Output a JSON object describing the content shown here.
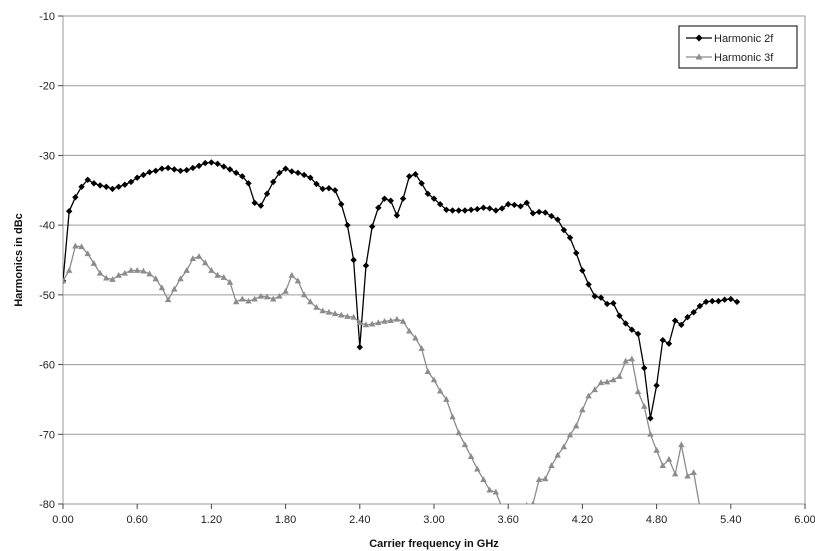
{
  "chart_data": {
    "type": "line",
    "title": "",
    "xlabel": "Carrier frequency in GHz",
    "ylabel": "Harmonics in dBc",
    "xlim": [
      0,
      6
    ],
    "ylim": [
      -80,
      -10
    ],
    "x_ticks": [
      0,
      0.6,
      1.2,
      1.8,
      2.4,
      3.0,
      3.6,
      4.2,
      4.8,
      5.4,
      6.0
    ],
    "x_tick_labels": [
      "0.00",
      "0.60",
      "1.20",
      "1.80",
      "2.40",
      "3.00",
      "3.60",
      "4.20",
      "4.80",
      "5.40",
      "6.00"
    ],
    "y_ticks": [
      -80,
      -70,
      -60,
      -50,
      -40,
      -30,
      -20,
      -10
    ],
    "y_tick_labels": [
      "-80",
      "-70",
      "-60",
      "-50",
      "-40",
      "-30",
      "-20",
      "-10"
    ],
    "grid": "horizontal",
    "legend": "top-right",
    "series": [
      {
        "name": "Harmonic 2f",
        "color": "#000000",
        "marker": "diamond",
        "points": [
          [
            0.0,
            -48
          ],
          [
            0.05,
            -38
          ],
          [
            0.1,
            -36
          ],
          [
            0.15,
            -34.5
          ],
          [
            0.2,
            -33.5
          ],
          [
            0.25,
            -34
          ],
          [
            0.3,
            -34.3
          ],
          [
            0.35,
            -34.5
          ],
          [
            0.4,
            -34.8
          ],
          [
            0.45,
            -34.5
          ],
          [
            0.5,
            -34.2
          ],
          [
            0.55,
            -33.8
          ],
          [
            0.6,
            -33.2
          ],
          [
            0.65,
            -32.8
          ],
          [
            0.7,
            -32.4
          ],
          [
            0.75,
            -32.2
          ],
          [
            0.8,
            -31.9
          ],
          [
            0.85,
            -31.8
          ],
          [
            0.9,
            -32
          ],
          [
            0.95,
            -32.2
          ],
          [
            1.0,
            -32.1
          ],
          [
            1.05,
            -31.8
          ],
          [
            1.1,
            -31.5
          ],
          [
            1.15,
            -31.1
          ],
          [
            1.2,
            -31
          ],
          [
            1.25,
            -31.2
          ],
          [
            1.3,
            -31.6
          ],
          [
            1.35,
            -32
          ],
          [
            1.4,
            -32.5
          ],
          [
            1.45,
            -33
          ],
          [
            1.5,
            -34
          ],
          [
            1.55,
            -36.8
          ],
          [
            1.6,
            -37.2
          ],
          [
            1.65,
            -35.5
          ],
          [
            1.7,
            -33.8
          ],
          [
            1.75,
            -32.5
          ],
          [
            1.8,
            -31.9
          ],
          [
            1.85,
            -32.3
          ],
          [
            1.9,
            -32.5
          ],
          [
            1.95,
            -32.8
          ],
          [
            2.0,
            -33.2
          ],
          [
            2.05,
            -34.1
          ],
          [
            2.1,
            -34.8
          ],
          [
            2.15,
            -34.7
          ],
          [
            2.2,
            -35
          ],
          [
            2.25,
            -37
          ],
          [
            2.3,
            -40
          ],
          [
            2.35,
            -45
          ],
          [
            2.4,
            -57.5
          ],
          [
            2.45,
            -45.8
          ],
          [
            2.5,
            -40.2
          ],
          [
            2.55,
            -37.5
          ],
          [
            2.6,
            -36.2
          ],
          [
            2.65,
            -36.5
          ],
          [
            2.7,
            -38.6
          ],
          [
            2.75,
            -36.2
          ],
          [
            2.8,
            -33
          ],
          [
            2.85,
            -32.7
          ],
          [
            2.9,
            -34
          ],
          [
            2.95,
            -35.5
          ],
          [
            3.0,
            -36.2
          ],
          [
            3.05,
            -37
          ],
          [
            3.1,
            -37.8
          ],
          [
            3.15,
            -37.9
          ],
          [
            3.2,
            -37.9
          ],
          [
            3.25,
            -37.9
          ],
          [
            3.3,
            -37.8
          ],
          [
            3.35,
            -37.7
          ],
          [
            3.4,
            -37.5
          ],
          [
            3.45,
            -37.6
          ],
          [
            3.5,
            -37.9
          ],
          [
            3.55,
            -37.6
          ],
          [
            3.6,
            -37
          ],
          [
            3.65,
            -37.1
          ],
          [
            3.7,
            -37.3
          ],
          [
            3.75,
            -36.8
          ],
          [
            3.8,
            -38.3
          ],
          [
            3.85,
            -38.1
          ],
          [
            3.9,
            -38.2
          ],
          [
            3.95,
            -38.7
          ],
          [
            4.0,
            -39.2
          ],
          [
            4.05,
            -40.7
          ],
          [
            4.1,
            -41.8
          ],
          [
            4.15,
            -44
          ],
          [
            4.2,
            -46.5
          ],
          [
            4.25,
            -48.5
          ],
          [
            4.3,
            -50.2
          ],
          [
            4.35,
            -50.4
          ],
          [
            4.4,
            -51.3
          ],
          [
            4.45,
            -51.2
          ],
          [
            4.5,
            -53
          ],
          [
            4.55,
            -54.1
          ],
          [
            4.6,
            -55
          ],
          [
            4.65,
            -55.6
          ],
          [
            4.7,
            -60.5
          ],
          [
            4.75,
            -67.7
          ],
          [
            4.8,
            -63
          ],
          [
            4.85,
            -56.5
          ],
          [
            4.9,
            -57
          ],
          [
            4.95,
            -53.7
          ],
          [
            5.0,
            -54.3
          ],
          [
            5.05,
            -53.2
          ],
          [
            5.1,
            -52.5
          ],
          [
            5.15,
            -51.6
          ],
          [
            5.2,
            -51
          ],
          [
            5.25,
            -50.9
          ],
          [
            5.3,
            -50.9
          ],
          [
            5.35,
            -50.7
          ],
          [
            5.4,
            -50.6
          ],
          [
            5.45,
            -51
          ]
        ]
      },
      {
        "name": "Harmonic 3f",
        "color": "#8c8c8c",
        "marker": "triangle",
        "points": [
          [
            0.0,
            -48
          ],
          [
            0.05,
            -46.5
          ],
          [
            0.1,
            -43
          ],
          [
            0.15,
            -43.1
          ],
          [
            0.2,
            -44.1
          ],
          [
            0.25,
            -45.5
          ],
          [
            0.3,
            -46.9
          ],
          [
            0.35,
            -47.6
          ],
          [
            0.4,
            -47.8
          ],
          [
            0.45,
            -47.2
          ],
          [
            0.5,
            -46.9
          ],
          [
            0.55,
            -46.5
          ],
          [
            0.6,
            -46.5
          ],
          [
            0.65,
            -46.6
          ],
          [
            0.7,
            -47
          ],
          [
            0.75,
            -47.7
          ],
          [
            0.8,
            -49
          ],
          [
            0.85,
            -50.7
          ],
          [
            0.9,
            -49.2
          ],
          [
            0.95,
            -47.7
          ],
          [
            1.0,
            -46.5
          ],
          [
            1.05,
            -44.8
          ],
          [
            1.1,
            -44.5
          ],
          [
            1.15,
            -45.4
          ],
          [
            1.2,
            -46.5
          ],
          [
            1.25,
            -47.2
          ],
          [
            1.3,
            -47.5
          ],
          [
            1.35,
            -48.2
          ],
          [
            1.4,
            -51
          ],
          [
            1.45,
            -50.6
          ],
          [
            1.5,
            -50.9
          ],
          [
            1.55,
            -50.6
          ],
          [
            1.6,
            -50.2
          ],
          [
            1.65,
            -50.3
          ],
          [
            1.7,
            -50.6
          ],
          [
            1.75,
            -50.2
          ],
          [
            1.8,
            -49.5
          ],
          [
            1.85,
            -47.2
          ],
          [
            1.9,
            -48
          ],
          [
            1.95,
            -50
          ],
          [
            2.0,
            -51
          ],
          [
            2.05,
            -51.8
          ],
          [
            2.1,
            -52.3
          ],
          [
            2.15,
            -52.5
          ],
          [
            2.2,
            -52.7
          ],
          [
            2.25,
            -52.9
          ],
          [
            2.3,
            -53.1
          ],
          [
            2.35,
            -53.2
          ],
          [
            2.4,
            -54
          ],
          [
            2.45,
            -54.3
          ],
          [
            2.5,
            -54.2
          ],
          [
            2.55,
            -54
          ],
          [
            2.6,
            -53.8
          ],
          [
            2.65,
            -53.7
          ],
          [
            2.7,
            -53.5
          ],
          [
            2.75,
            -53.8
          ],
          [
            2.8,
            -55.2
          ],
          [
            2.85,
            -56.2
          ],
          [
            2.9,
            -57.7
          ],
          [
            2.95,
            -61
          ],
          [
            3.0,
            -62.2
          ],
          [
            3.05,
            -63.8
          ],
          [
            3.1,
            -65
          ],
          [
            3.15,
            -67.5
          ],
          [
            3.2,
            -69.8
          ],
          [
            3.25,
            -71.5
          ],
          [
            3.3,
            -73.2
          ],
          [
            3.35,
            -75
          ],
          [
            3.4,
            -76.5
          ],
          [
            3.45,
            -78
          ],
          [
            3.5,
            -78.3
          ],
          [
            3.55,
            -80.5
          ],
          [
            3.6,
            -81
          ],
          [
            3.65,
            -81.2
          ],
          [
            3.7,
            -81
          ],
          [
            3.75,
            -80.2
          ],
          [
            3.8,
            -80
          ],
          [
            3.85,
            -76.5
          ],
          [
            3.9,
            -76.4
          ],
          [
            3.95,
            -74.5
          ],
          [
            4.0,
            -73
          ],
          [
            4.05,
            -71.8
          ],
          [
            4.1,
            -70.1
          ],
          [
            4.15,
            -68.8
          ],
          [
            4.2,
            -66.5
          ],
          [
            4.25,
            -64.5
          ],
          [
            4.3,
            -63.6
          ],
          [
            4.35,
            -62.6
          ],
          [
            4.4,
            -62.5
          ],
          [
            4.45,
            -62.2
          ],
          [
            4.5,
            -61.7
          ],
          [
            4.55,
            -59.5
          ],
          [
            4.6,
            -59.2
          ],
          [
            4.65,
            -63.9
          ],
          [
            4.7,
            -66
          ],
          [
            4.75,
            -70
          ],
          [
            4.8,
            -72.3
          ],
          [
            4.85,
            -74.5
          ],
          [
            4.9,
            -73.6
          ],
          [
            4.95,
            -75.7
          ],
          [
            5.0,
            -71.5
          ],
          [
            5.05,
            -76
          ],
          [
            5.1,
            -75.5
          ],
          [
            5.15,
            -80.5
          ]
        ]
      }
    ]
  }
}
